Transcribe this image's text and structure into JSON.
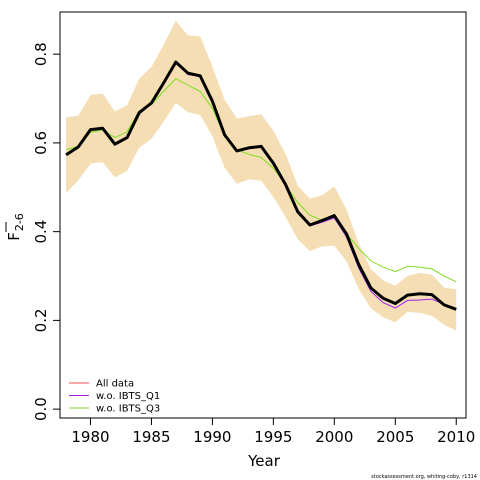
{
  "chart_data": {
    "type": "line",
    "xlabel": "Year",
    "ylabel_main": "F",
    "ylabel_sub": "2-6",
    "xlim": [
      1977.5,
      2010.8
    ],
    "ylim": [
      -0.02,
      0.895
    ],
    "x_ticks": [
      1980,
      1985,
      1990,
      1995,
      2000,
      2005,
      2010
    ],
    "x_tick_labels": [
      "1980",
      "1985",
      "1990",
      "1995",
      "2000",
      "2005",
      "2010"
    ],
    "y_ticks": [
      0.0,
      0.2,
      0.4,
      0.6,
      0.8
    ],
    "y_tick_labels": [
      "0.0",
      "0.2",
      "0.4",
      "0.6",
      "0.8"
    ],
    "grid": false,
    "legend_position": "bottom-left",
    "x": [
      1978,
      1979,
      1980,
      1981,
      1982,
      1983,
      1984,
      1985,
      1986,
      1987,
      1988,
      1989,
      1990,
      1991,
      1992,
      1993,
      1994,
      1995,
      1996,
      1997,
      1998,
      1999,
      2000,
      2001,
      2002,
      2003,
      2004,
      2005,
      2006,
      2007,
      2008,
      2009,
      2010
    ],
    "confidence_band": {
      "color": "#f5deb3",
      "upper": [
        0.658,
        0.661,
        0.708,
        0.711,
        0.671,
        0.685,
        0.745,
        0.771,
        0.821,
        0.875,
        0.842,
        0.84,
        0.772,
        0.697,
        0.655,
        0.66,
        0.665,
        0.627,
        0.575,
        0.504,
        0.474,
        0.482,
        0.502,
        0.45,
        0.374,
        0.315,
        0.29,
        0.278,
        0.3,
        0.307,
        0.303,
        0.274,
        0.27
      ],
      "lower": [
        0.487,
        0.516,
        0.553,
        0.557,
        0.522,
        0.537,
        0.589,
        0.609,
        0.648,
        0.69,
        0.669,
        0.663,
        0.615,
        0.544,
        0.508,
        0.518,
        0.515,
        0.478,
        0.433,
        0.383,
        0.356,
        0.367,
        0.368,
        0.333,
        0.271,
        0.227,
        0.207,
        0.196,
        0.219,
        0.217,
        0.21,
        0.19,
        0.177
      ]
    },
    "series": [
      {
        "name": "All data",
        "color": "#ff4d5a",
        "values": [
          0.573,
          0.591,
          0.63,
          0.633,
          0.597,
          0.612,
          0.668,
          0.69,
          0.735,
          0.782,
          0.757,
          0.751,
          0.694,
          0.618,
          0.582,
          0.589,
          0.592,
          0.554,
          0.506,
          0.445,
          0.415,
          0.425,
          0.436,
          0.395,
          0.326,
          0.273,
          0.25,
          0.238,
          0.257,
          0.26,
          0.258,
          0.235,
          0.225
        ]
      },
      {
        "name": "w.o. IBTS_Q1",
        "color": "#a020f0",
        "values": [
          0.573,
          0.589,
          0.631,
          0.633,
          0.595,
          0.61,
          0.665,
          0.689,
          0.736,
          0.783,
          0.754,
          0.75,
          0.695,
          0.62,
          0.581,
          0.587,
          0.59,
          0.552,
          0.507,
          0.442,
          0.413,
          0.421,
          0.431,
          0.388,
          0.318,
          0.265,
          0.24,
          0.228,
          0.245,
          0.246,
          0.248,
          0.236,
          0.224
        ]
      },
      {
        "name": "w.o. IBTS_Q3",
        "color": "#7fdd20",
        "values": [
          0.585,
          0.592,
          0.624,
          0.629,
          0.612,
          0.625,
          0.672,
          0.686,
          0.716,
          0.745,
          0.73,
          0.716,
          0.678,
          0.615,
          0.585,
          0.574,
          0.567,
          0.543,
          0.505,
          0.466,
          0.437,
          0.426,
          0.439,
          0.396,
          0.362,
          0.334,
          0.32,
          0.31,
          0.322,
          0.32,
          0.316,
          0.3,
          0.287
        ]
      }
    ],
    "bold_series_color": "#000000",
    "credit": "stockassessment.org, whiting-coby, r1314"
  }
}
